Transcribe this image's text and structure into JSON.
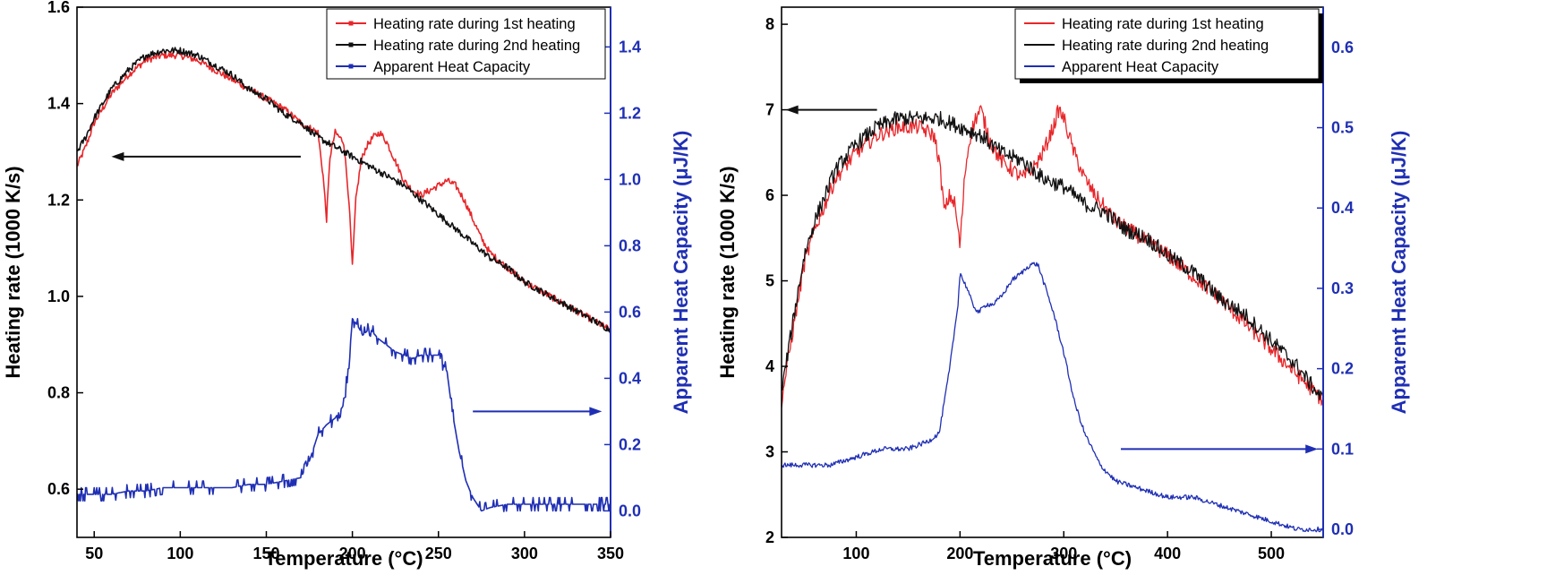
{
  "chart_data": [
    {
      "type": "line",
      "panel": "left",
      "xlabel": "Temperature (°C)",
      "ylabel": "Heating rate (1000 K/s)",
      "y2label": "Apparent Heat Capacity (μJ/K)",
      "xlim": [
        40,
        350
      ],
      "ylim": [
        0.5,
        1.6
      ],
      "y2lim": [
        -0.08,
        1.52
      ],
      "xticks": [
        50,
        100,
        150,
        200,
        250,
        300,
        350
      ],
      "yticks": [
        0.6,
        0.8,
        1.0,
        1.2,
        1.4,
        1.6
      ],
      "y2ticks": [
        0.0,
        0.2,
        0.4,
        0.6,
        0.8,
        1.0,
        1.2,
        1.4
      ],
      "tick_format": {
        "y": 1,
        "y2": 1,
        "x": 0
      },
      "legend": "top-right",
      "colors": {
        "first": "#e8262a",
        "second": "#111111",
        "cap": "#1f2fb4"
      },
      "series": [
        {
          "name": "Heating rate during 1st heating",
          "axis": "left",
          "key": "first",
          "x": [
            40,
            45,
            50,
            60,
            70,
            80,
            90,
            100,
            110,
            120,
            130,
            140,
            150,
            160,
            170,
            175,
            180,
            183,
            185,
            187,
            190,
            195,
            198,
            200,
            202,
            205,
            208,
            212,
            216,
            220,
            225,
            230,
            235,
            240,
            245,
            250,
            255,
            260,
            265,
            270,
            275,
            280,
            290,
            300,
            310,
            320,
            330,
            340,
            350
          ],
          "y": [
            1.27,
            1.31,
            1.36,
            1.42,
            1.46,
            1.49,
            1.5,
            1.5,
            1.49,
            1.47,
            1.45,
            1.43,
            1.41,
            1.39,
            1.36,
            1.35,
            1.34,
            1.25,
            1.16,
            1.29,
            1.34,
            1.32,
            1.2,
            1.06,
            1.2,
            1.28,
            1.31,
            1.33,
            1.34,
            1.32,
            1.28,
            1.24,
            1.22,
            1.21,
            1.22,
            1.23,
            1.24,
            1.23,
            1.2,
            1.16,
            1.12,
            1.09,
            1.06,
            1.03,
            1.01,
            0.99,
            0.97,
            0.95,
            0.93
          ]
        },
        {
          "name": "Heating rate during 2nd heating",
          "axis": "left",
          "key": "second",
          "x": [
            40,
            45,
            50,
            60,
            70,
            80,
            90,
            100,
            110,
            120,
            130,
            140,
            150,
            160,
            170,
            180,
            190,
            200,
            210,
            220,
            230,
            240,
            250,
            260,
            270,
            280,
            290,
            300,
            310,
            320,
            330,
            340,
            350
          ],
          "y": [
            1.3,
            1.33,
            1.37,
            1.43,
            1.47,
            1.5,
            1.51,
            1.51,
            1.5,
            1.48,
            1.46,
            1.43,
            1.41,
            1.38,
            1.36,
            1.33,
            1.31,
            1.29,
            1.27,
            1.25,
            1.23,
            1.2,
            1.17,
            1.14,
            1.11,
            1.08,
            1.06,
            1.03,
            1.01,
            0.99,
            0.97,
            0.95,
            0.93
          ]
        },
        {
          "name": "Apparent Heat Capacity",
          "axis": "right",
          "key": "cap",
          "x": [
            40,
            50,
            60,
            70,
            80,
            90,
            100,
            110,
            120,
            130,
            140,
            150,
            160,
            170,
            175,
            180,
            185,
            190,
            195,
            198,
            200,
            203,
            206,
            210,
            215,
            220,
            225,
            230,
            235,
            240,
            245,
            250,
            255,
            258,
            262,
            266,
            270,
            275,
            280,
            290,
            300,
            310,
            320,
            330,
            340,
            350
          ],
          "y": [
            0.05,
            0.05,
            0.05,
            0.06,
            0.06,
            0.07,
            0.07,
            0.07,
            0.07,
            0.07,
            0.08,
            0.08,
            0.09,
            0.1,
            0.15,
            0.23,
            0.26,
            0.28,
            0.32,
            0.45,
            0.58,
            0.56,
            0.53,
            0.55,
            0.52,
            0.5,
            0.48,
            0.47,
            0.46,
            0.47,
            0.47,
            0.47,
            0.42,
            0.3,
            0.18,
            0.09,
            0.04,
            0.0,
            0.01,
            0.02,
            0.02,
            0.02,
            0.02,
            0.02,
            0.02,
            0.02
          ]
        }
      ],
      "arrows": [
        {
          "direction": "left",
          "color": "#111111",
          "x_from": 170,
          "x_to": 60,
          "y": 1.29,
          "axis": "left"
        },
        {
          "direction": "right",
          "color": "#1f2fb4",
          "x_from": 270,
          "x_to": 345,
          "y": 0.3,
          "axis": "right"
        }
      ]
    },
    {
      "type": "line",
      "panel": "right",
      "xlabel": "Temperature (°C)",
      "ylabel": "Heating rate (1000 K/s)",
      "y2label": "Apparent Heat Capacity (μJ/K)",
      "xlim": [
        28,
        550
      ],
      "ylim": [
        2,
        8.2
      ],
      "y2lim": [
        -0.01,
        0.65
      ],
      "xticks": [
        100,
        200,
        300,
        400,
        500
      ],
      "yticks": [
        2,
        3,
        4,
        5,
        6,
        7,
        8
      ],
      "y2ticks": [
        0.0,
        0.1,
        0.2,
        0.3,
        0.4,
        0.5,
        0.6
      ],
      "tick_format": {
        "y": 0,
        "y2": 1,
        "x": 0
      },
      "legend": "top-right",
      "colors": {
        "first": "#e8262a",
        "second": "#111111",
        "cap": "#1f2fb4"
      },
      "series": [
        {
          "name": "Heating rate during 1st heating",
          "axis": "left",
          "key": "first",
          "x": [
            28,
            40,
            50,
            60,
            80,
            100,
            120,
            140,
            160,
            175,
            180,
            185,
            190,
            195,
            200,
            205,
            210,
            215,
            220,
            225,
            230,
            240,
            250,
            260,
            270,
            280,
            290,
            295,
            300,
            305,
            310,
            320,
            330,
            350,
            375,
            400,
            450,
            500,
            550
          ],
          "y": [
            3.6,
            4.5,
            5.2,
            5.6,
            6.2,
            6.5,
            6.7,
            6.8,
            6.8,
            6.7,
            6.4,
            5.8,
            6.0,
            5.9,
            5.4,
            6.3,
            6.7,
            6.9,
            7.0,
            6.8,
            6.6,
            6.4,
            6.3,
            6.2,
            6.3,
            6.5,
            6.8,
            7.0,
            6.9,
            6.7,
            6.5,
            6.2,
            6.0,
            5.7,
            5.5,
            5.3,
            4.8,
            4.2,
            3.6
          ]
        },
        {
          "name": "Heating rate during 2nd heating",
          "axis": "left",
          "key": "second",
          "x": [
            28,
            40,
            50,
            60,
            80,
            100,
            120,
            140,
            160,
            180,
            200,
            220,
            240,
            260,
            280,
            300,
            320,
            340,
            360,
            380,
            400,
            425,
            450,
            475,
            500,
            525,
            550
          ],
          "y": [
            3.7,
            4.6,
            5.3,
            5.7,
            6.3,
            6.6,
            6.8,
            6.9,
            6.9,
            6.9,
            6.8,
            6.7,
            6.5,
            6.4,
            6.2,
            6.1,
            5.9,
            5.8,
            5.6,
            5.5,
            5.3,
            5.1,
            4.8,
            4.6,
            4.3,
            4.0,
            3.6
          ]
        },
        {
          "name": "Apparent Heat Capacity",
          "axis": "right",
          "key": "cap",
          "x": [
            28,
            50,
            75,
            100,
            125,
            150,
            170,
            180,
            185,
            190,
            195,
            198,
            200,
            203,
            207,
            212,
            218,
            225,
            232,
            240,
            250,
            260,
            268,
            275,
            280,
            290,
            300,
            310,
            320,
            335,
            350,
            375,
            400,
            425,
            450,
            475,
            500,
            525,
            550
          ],
          "y": [
            0.08,
            0.08,
            0.08,
            0.09,
            0.1,
            0.1,
            0.11,
            0.12,
            0.16,
            0.2,
            0.25,
            0.28,
            0.32,
            0.31,
            0.3,
            0.28,
            0.27,
            0.28,
            0.28,
            0.29,
            0.31,
            0.32,
            0.33,
            0.33,
            0.31,
            0.27,
            0.22,
            0.16,
            0.12,
            0.08,
            0.06,
            0.05,
            0.04,
            0.04,
            0.03,
            0.02,
            0.01,
            0.0,
            0.0
          ]
        }
      ],
      "arrows": [
        {
          "direction": "left",
          "color": "#111111",
          "x_from": 120,
          "x_to": 32,
          "y": 7.0,
          "axis": "left"
        },
        {
          "direction": "right",
          "color": "#1f2fb4",
          "x_from": 355,
          "x_to": 545,
          "y": 0.1,
          "axis": "right"
        }
      ]
    }
  ]
}
